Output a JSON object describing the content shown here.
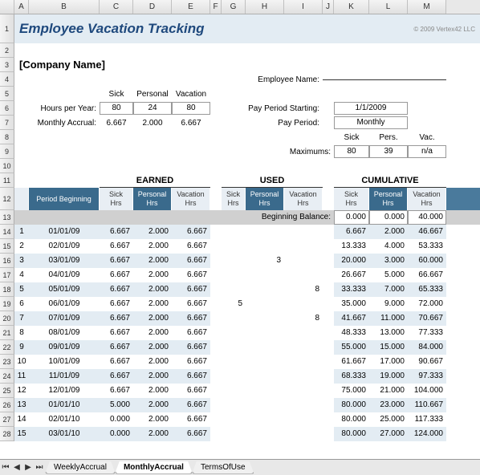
{
  "columns": [
    "A",
    "B",
    "C",
    "D",
    "E",
    "F",
    "G",
    "H",
    "I",
    "J",
    "K",
    "L",
    "M"
  ],
  "row_numbers": [
    1,
    2,
    3,
    4,
    5,
    6,
    7,
    8,
    9,
    10,
    11,
    12,
    13,
    14,
    15,
    16,
    17,
    18,
    19,
    20,
    21,
    22,
    23,
    24,
    25,
    26,
    27,
    28
  ],
  "title": "Employee Vacation Tracking",
  "copyright": "© 2009 Vertex42 LLC",
  "company": "[Company Name]",
  "labels": {
    "employee_name": "Employee Name:",
    "hours_per_year": "Hours per Year:",
    "monthly_accrual": "Monthly Accrual:",
    "pay_period_starting": "Pay Period Starting:",
    "pay_period": "Pay Period:",
    "maximums": "Maximums:",
    "sick": "Sick",
    "personal": "Personal",
    "vacation": "Vacation",
    "pers": "Pers.",
    "vac": "Vac.",
    "beginning_balance": "Beginning Balance:"
  },
  "hours_per_year": {
    "sick": "80",
    "personal": "24",
    "vacation": "80"
  },
  "monthly_accrual": {
    "sick": "6.667",
    "personal": "2.000",
    "vacation": "6.667"
  },
  "pay_period_starting": "1/1/2009",
  "pay_period_value": "Monthly",
  "maximums": {
    "sick": "80",
    "pers": "39",
    "vac": "n/a"
  },
  "sections": {
    "earned": "EARNED",
    "used": "USED",
    "cumulative": "CUMULATIVE"
  },
  "headers": {
    "period": "Period Beginning",
    "sick_hrs": "Sick Hrs",
    "personal_hrs": "Personal Hrs",
    "vacation_hrs": "Vacation Hrs"
  },
  "beginning": {
    "sick": "0.000",
    "personal": "0.000",
    "vacation": "40.000"
  },
  "rows": [
    {
      "n": 1,
      "date": "01/01/09",
      "e_s": "6.667",
      "e_p": "2.000",
      "e_v": "6.667",
      "u_s": "",
      "u_p": "",
      "u_v": "",
      "c_s": "6.667",
      "c_p": "2.000",
      "c_v": "46.667"
    },
    {
      "n": 2,
      "date": "02/01/09",
      "e_s": "6.667",
      "e_p": "2.000",
      "e_v": "6.667",
      "u_s": "",
      "u_p": "",
      "u_v": "",
      "c_s": "13.333",
      "c_p": "4.000",
      "c_v": "53.333"
    },
    {
      "n": 3,
      "date": "03/01/09",
      "e_s": "6.667",
      "e_p": "2.000",
      "e_v": "6.667",
      "u_s": "",
      "u_p": "3",
      "u_v": "",
      "c_s": "20.000",
      "c_p": "3.000",
      "c_v": "60.000"
    },
    {
      "n": 4,
      "date": "04/01/09",
      "e_s": "6.667",
      "e_p": "2.000",
      "e_v": "6.667",
      "u_s": "",
      "u_p": "",
      "u_v": "",
      "c_s": "26.667",
      "c_p": "5.000",
      "c_v": "66.667"
    },
    {
      "n": 5,
      "date": "05/01/09",
      "e_s": "6.667",
      "e_p": "2.000",
      "e_v": "6.667",
      "u_s": "",
      "u_p": "",
      "u_v": "8",
      "c_s": "33.333",
      "c_p": "7.000",
      "c_v": "65.333"
    },
    {
      "n": 6,
      "date": "06/01/09",
      "e_s": "6.667",
      "e_p": "2.000",
      "e_v": "6.667",
      "u_s": "5",
      "u_p": "",
      "u_v": "",
      "c_s": "35.000",
      "c_p": "9.000",
      "c_v": "72.000"
    },
    {
      "n": 7,
      "date": "07/01/09",
      "e_s": "6.667",
      "e_p": "2.000",
      "e_v": "6.667",
      "u_s": "",
      "u_p": "",
      "u_v": "8",
      "c_s": "41.667",
      "c_p": "11.000",
      "c_v": "70.667"
    },
    {
      "n": 8,
      "date": "08/01/09",
      "e_s": "6.667",
      "e_p": "2.000",
      "e_v": "6.667",
      "u_s": "",
      "u_p": "",
      "u_v": "",
      "c_s": "48.333",
      "c_p": "13.000",
      "c_v": "77.333"
    },
    {
      "n": 9,
      "date": "09/01/09",
      "e_s": "6.667",
      "e_p": "2.000",
      "e_v": "6.667",
      "u_s": "",
      "u_p": "",
      "u_v": "",
      "c_s": "55.000",
      "c_p": "15.000",
      "c_v": "84.000"
    },
    {
      "n": 10,
      "date": "10/01/09",
      "e_s": "6.667",
      "e_p": "2.000",
      "e_v": "6.667",
      "u_s": "",
      "u_p": "",
      "u_v": "",
      "c_s": "61.667",
      "c_p": "17.000",
      "c_v": "90.667"
    },
    {
      "n": 11,
      "date": "11/01/09",
      "e_s": "6.667",
      "e_p": "2.000",
      "e_v": "6.667",
      "u_s": "",
      "u_p": "",
      "u_v": "",
      "c_s": "68.333",
      "c_p": "19.000",
      "c_v": "97.333"
    },
    {
      "n": 12,
      "date": "12/01/09",
      "e_s": "6.667",
      "e_p": "2.000",
      "e_v": "6.667",
      "u_s": "",
      "u_p": "",
      "u_v": "",
      "c_s": "75.000",
      "c_p": "21.000",
      "c_v": "104.000"
    },
    {
      "n": 13,
      "date": "01/01/10",
      "e_s": "5.000",
      "e_p": "2.000",
      "e_v": "6.667",
      "u_s": "",
      "u_p": "",
      "u_v": "",
      "c_s": "80.000",
      "c_p": "23.000",
      "c_v": "110.667"
    },
    {
      "n": 14,
      "date": "02/01/10",
      "e_s": "0.000",
      "e_p": "2.000",
      "e_v": "6.667",
      "u_s": "",
      "u_p": "",
      "u_v": "",
      "c_s": "80.000",
      "c_p": "25.000",
      "c_v": "117.333"
    },
    {
      "n": 15,
      "date": "03/01/10",
      "e_s": "0.000",
      "e_p": "2.000",
      "e_v": "6.667",
      "u_s": "",
      "u_p": "",
      "u_v": "",
      "c_s": "80.000",
      "c_p": "27.000",
      "c_v": "124.000"
    }
  ],
  "tabs": [
    "WeeklyAccrual",
    "MonthlyAccrual",
    "TermsOfUse"
  ],
  "active_tab": 1
}
